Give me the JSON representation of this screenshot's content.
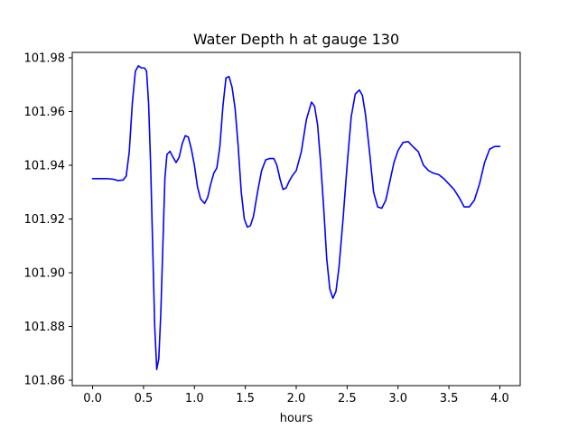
{
  "chart_data": {
    "type": "line",
    "title": "Water Depth h at gauge 130",
    "xlabel": "hours",
    "ylabel": "",
    "xlim": [
      -0.2,
      4.2
    ],
    "ylim": [
      101.858,
      101.982
    ],
    "xticks": [
      0.0,
      0.5,
      1.0,
      1.5,
      2.0,
      2.5,
      3.0,
      3.5,
      4.0
    ],
    "xtick_labels": [
      "0.0",
      "0.5",
      "1.0",
      "1.5",
      "2.0",
      "2.5",
      "3.0",
      "3.5",
      "4.0"
    ],
    "yticks": [
      101.86,
      101.88,
      101.9,
      101.92,
      101.94,
      101.96,
      101.98
    ],
    "ytick_labels": [
      "101.86",
      "101.88",
      "101.90",
      "101.92",
      "101.94",
      "101.96",
      "101.98"
    ],
    "grid": false,
    "series": [
      {
        "color": "#0000ff",
        "x": [
          0.0,
          0.1,
          0.15,
          0.2,
          0.25,
          0.3,
          0.33,
          0.36,
          0.39,
          0.42,
          0.45,
          0.48,
          0.51,
          0.53,
          0.55,
          0.57,
          0.59,
          0.61,
          0.63,
          0.65,
          0.67,
          0.69,
          0.71,
          0.73,
          0.76,
          0.79,
          0.82,
          0.85,
          0.88,
          0.91,
          0.94,
          0.97,
          1.0,
          1.03,
          1.06,
          1.1,
          1.13,
          1.16,
          1.19,
          1.22,
          1.25,
          1.28,
          1.31,
          1.34,
          1.37,
          1.4,
          1.43,
          1.46,
          1.49,
          1.52,
          1.55,
          1.58,
          1.62,
          1.66,
          1.7,
          1.74,
          1.78,
          1.81,
          1.84,
          1.87,
          1.9,
          1.93,
          1.96,
          2.0,
          2.05,
          2.1,
          2.15,
          2.18,
          2.21,
          2.24,
          2.27,
          2.3,
          2.33,
          2.36,
          2.39,
          2.42,
          2.46,
          2.5,
          2.54,
          2.58,
          2.62,
          2.65,
          2.68,
          2.72,
          2.76,
          2.8,
          2.84,
          2.88,
          2.92,
          2.96,
          3.0,
          3.05,
          3.1,
          3.15,
          3.2,
          3.25,
          3.3,
          3.35,
          3.4,
          3.45,
          3.5,
          3.55,
          3.6,
          3.65,
          3.7,
          3.75,
          3.8,
          3.85,
          3.9,
          3.95,
          4.0
        ],
        "y": [
          101.935,
          101.935,
          101.935,
          101.9348,
          101.9343,
          101.9345,
          101.936,
          101.945,
          101.963,
          101.975,
          101.977,
          101.9762,
          101.9762,
          101.975,
          101.963,
          101.94,
          101.91,
          101.88,
          101.864,
          101.868,
          101.885,
          101.91,
          101.935,
          101.944,
          101.9452,
          101.943,
          101.941,
          101.943,
          101.948,
          101.951,
          101.9505,
          101.946,
          101.94,
          101.932,
          101.9275,
          101.9258,
          101.928,
          101.933,
          101.937,
          101.939,
          101.947,
          101.962,
          101.9725,
          101.973,
          101.969,
          101.961,
          101.947,
          101.93,
          101.92,
          101.917,
          101.9175,
          101.921,
          101.93,
          101.938,
          101.942,
          101.9425,
          101.9425,
          101.94,
          101.935,
          101.931,
          101.9315,
          101.934,
          101.936,
          101.938,
          101.945,
          101.957,
          101.9635,
          101.962,
          101.955,
          101.941,
          101.924,
          101.905,
          101.894,
          101.8905,
          101.893,
          101.902,
          101.92,
          101.94,
          101.958,
          101.9665,
          101.968,
          101.966,
          101.959,
          101.945,
          101.93,
          101.9245,
          101.924,
          101.927,
          101.934,
          101.941,
          101.9455,
          101.9485,
          101.9488,
          101.9468,
          101.945,
          101.94,
          101.938,
          101.937,
          101.9365,
          101.935,
          101.933,
          101.931,
          101.928,
          101.9245,
          101.9245,
          101.927,
          101.933,
          101.941,
          101.946,
          101.947,
          101.947
        ]
      }
    ]
  }
}
